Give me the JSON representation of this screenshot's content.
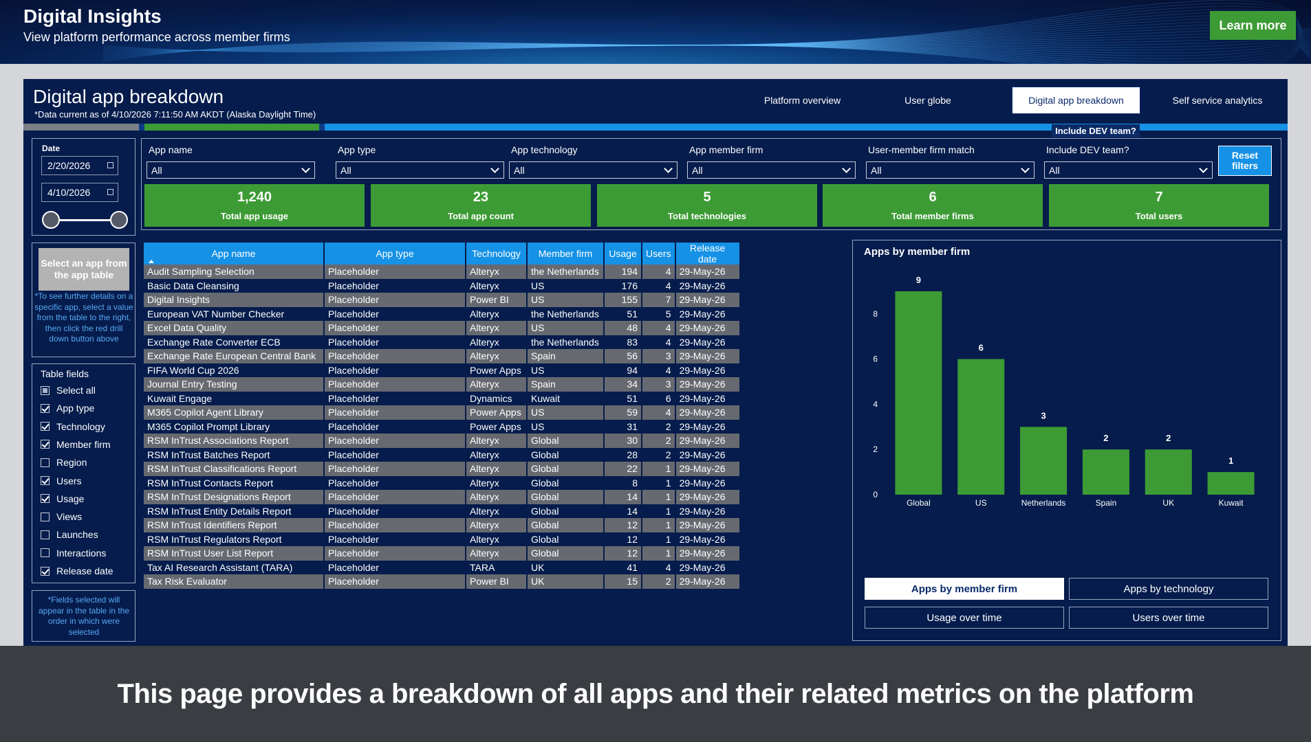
{
  "banner": {
    "title": "Digital Insights",
    "subtitle": "View platform performance across member firms",
    "learn_more": "Learn more"
  },
  "report": {
    "title": "Digital app breakdown",
    "note": "*Data current as of 4/10/2026 7:11:50 AM AKDT (Alaska Daylight Time)",
    "tabs": [
      "Platform overview",
      "User globe",
      "Digital app breakdown",
      "Self service analytics"
    ],
    "active_tab": "Digital app breakdown",
    "dev_hint": "Include DEV team?"
  },
  "date_filter": {
    "label": "Date",
    "start": "2/20/2026",
    "end": "4/10/2026"
  },
  "select_app": {
    "button": "Select an app from the app table",
    "hint": "*To see further details on a specific app, select a value from the table to the right, then click the red drill down button above"
  },
  "table_fields": {
    "title": "Table fields",
    "items": [
      {
        "label": "Select all",
        "state": "partial"
      },
      {
        "label": "App type",
        "state": "checked"
      },
      {
        "label": "Technology",
        "state": "checked"
      },
      {
        "label": "Member firm",
        "state": "checked"
      },
      {
        "label": "Region",
        "state": "unchecked"
      },
      {
        "label": "Users",
        "state": "checked"
      },
      {
        "label": "Usage",
        "state": "checked"
      },
      {
        "label": "Views",
        "state": "unchecked"
      },
      {
        "label": "Launches",
        "state": "unchecked"
      },
      {
        "label": "Interactions",
        "state": "unchecked"
      },
      {
        "label": "Release date",
        "state": "checked"
      }
    ],
    "note": "*Fields selected will appear in the table in the order in which were selected"
  },
  "filters": {
    "items": [
      {
        "label": "App name",
        "value": "All"
      },
      {
        "label": "App type",
        "value": "All"
      },
      {
        "label": "App technology",
        "value": "All"
      },
      {
        "label": "App member firm",
        "value": "All"
      },
      {
        "label": "User-member firm match",
        "value": "All"
      },
      {
        "label": "Include DEV team?",
        "value": "All"
      }
    ],
    "reset": "Reset filters"
  },
  "kpis": [
    {
      "value": "1,240",
      "label": "Total app usage"
    },
    {
      "value": "23",
      "label": "Total app count"
    },
    {
      "value": "5",
      "label": "Total technologies"
    },
    {
      "value": "6",
      "label": "Total member firms"
    },
    {
      "value": "7",
      "label": "Total users"
    }
  ],
  "table": {
    "columns": [
      "App name",
      "App type",
      "Technology",
      "Member firm",
      "Usage",
      "Users",
      "Release date"
    ],
    "rows": [
      [
        "Audit Sampling Selection",
        "Placeholder",
        "Alteryx",
        "the Netherlands",
        "194",
        "4",
        "29-May-26"
      ],
      [
        "Basic Data Cleansing",
        "Placeholder",
        "Alteryx",
        "US",
        "176",
        "4",
        "29-May-26"
      ],
      [
        "Digital Insights",
        "Placeholder",
        "Power BI",
        "US",
        "155",
        "7",
        "29-May-26"
      ],
      [
        "European VAT Number Checker",
        "Placeholder",
        "Alteryx",
        "the Netherlands",
        "51",
        "5",
        "29-May-26"
      ],
      [
        "Excel Data Quality",
        "Placeholder",
        "Alteryx",
        "US",
        "48",
        "4",
        "29-May-26"
      ],
      [
        "Exchange Rate Converter ECB",
        "Placeholder",
        "Alteryx",
        "the Netherlands",
        "83",
        "4",
        "29-May-26"
      ],
      [
        "Exchange Rate European Central Bank",
        "Placeholder",
        "Alteryx",
        "Spain",
        "56",
        "3",
        "29-May-26"
      ],
      [
        "FIFA World Cup 2026",
        "Placeholder",
        "Power Apps",
        "US",
        "94",
        "4",
        "29-May-26"
      ],
      [
        "Journal Entry Testing",
        "Placeholder",
        "Alteryx",
        "Spain",
        "34",
        "3",
        "29-May-26"
      ],
      [
        "Kuwait Engage",
        "Placeholder",
        "Dynamics",
        "Kuwait",
        "51",
        "6",
        "29-May-26"
      ],
      [
        "M365 Copilot Agent Library",
        "Placeholder",
        "Power Apps",
        "US",
        "59",
        "4",
        "29-May-26"
      ],
      [
        "M365 Copilot Prompt Library",
        "Placeholder",
        "Power Apps",
        "US",
        "31",
        "2",
        "29-May-26"
      ],
      [
        "RSM InTrust Associations Report",
        "Placeholder",
        "Alteryx",
        "Global",
        "30",
        "2",
        "29-May-26"
      ],
      [
        "RSM InTrust Batches Report",
        "Placeholder",
        "Alteryx",
        "Global",
        "28",
        "2",
        "29-May-26"
      ],
      [
        "RSM InTrust Classifications Report",
        "Placeholder",
        "Alteryx",
        "Global",
        "22",
        "1",
        "29-May-26"
      ],
      [
        "RSM InTrust Contacts Report",
        "Placeholder",
        "Alteryx",
        "Global",
        "8",
        "1",
        "29-May-26"
      ],
      [
        "RSM InTrust Designations Report",
        "Placeholder",
        "Alteryx",
        "Global",
        "14",
        "1",
        "29-May-26"
      ],
      [
        "RSM InTrust Entity Details Report",
        "Placeholder",
        "Alteryx",
        "Global",
        "14",
        "1",
        "29-May-26"
      ],
      [
        "RSM InTrust Identifiers Report",
        "Placeholder",
        "Alteryx",
        "Global",
        "12",
        "1",
        "29-May-26"
      ],
      [
        "RSM InTrust Regulators Report",
        "Placeholder",
        "Alteryx",
        "Global",
        "12",
        "1",
        "29-May-26"
      ],
      [
        "RSM InTrust User List Report",
        "Placeholder",
        "Alteryx",
        "Global",
        "12",
        "1",
        "29-May-26"
      ],
      [
        "Tax AI Research Assistant (TARA)",
        "Placeholder",
        "TARA",
        "UK",
        "41",
        "4",
        "29-May-26"
      ],
      [
        "Tax Risk Evaluator",
        "Placeholder",
        "Power BI",
        "UK",
        "15",
        "2",
        "29-May-26"
      ]
    ]
  },
  "chart_data": {
    "type": "bar",
    "title": "Apps by member firm",
    "categories": [
      "Global",
      "US",
      "Netherlands",
      "Spain",
      "UK",
      "Kuwait"
    ],
    "values": [
      9,
      6,
      3,
      2,
      2,
      1
    ],
    "yticks": [
      0,
      2,
      4,
      6,
      8
    ],
    "ylim": [
      0,
      9
    ],
    "bar_color": "#3d9b35",
    "grid": false
  },
  "chart_buttons": [
    "Apps by member firm",
    "Apps by technology",
    "Usage over time",
    "Users over time"
  ],
  "active_chart_button": "Apps by member firm",
  "caption": "This page provides a breakdown of all apps and their related metrics on the platform",
  "colors": {
    "accent_blue": "#1591e6",
    "green": "#3d9b35",
    "navy": "#061c4c"
  }
}
